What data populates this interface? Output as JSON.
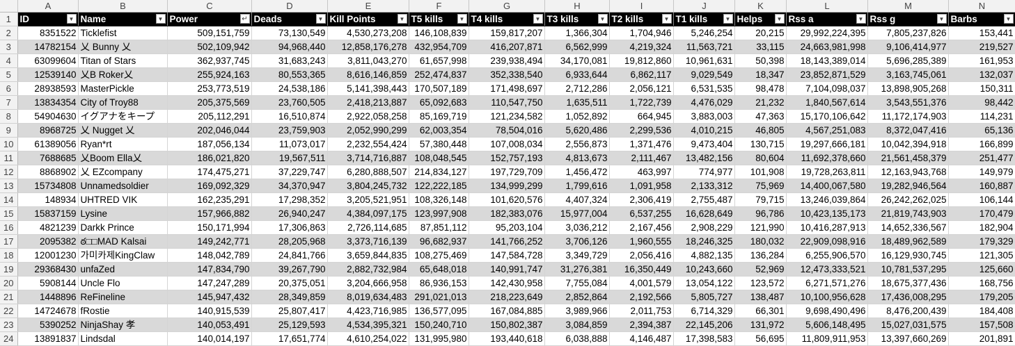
{
  "sheet": {
    "column_letters": [
      "A",
      "B",
      "C",
      "D",
      "E",
      "F",
      "G",
      "H",
      "I",
      "J",
      "K",
      "L",
      "M",
      "N"
    ],
    "headers": [
      {
        "label": "ID",
        "filter_icon": "dropdown-arrow"
      },
      {
        "label": "Name",
        "filter_icon": "dropdown-arrow"
      },
      {
        "label": "Power",
        "filter_icon": "sort-descending-filter"
      },
      {
        "label": "Deads",
        "filter_icon": "dropdown-arrow"
      },
      {
        "label": "Kill Points",
        "filter_icon": "dropdown-arrow"
      },
      {
        "label": "T5 kills",
        "filter_icon": "dropdown-arrow"
      },
      {
        "label": "T4 kills",
        "filter_icon": "dropdown-arrow"
      },
      {
        "label": "T3 kills",
        "filter_icon": "dropdown-arrow"
      },
      {
        "label": "T2 kills",
        "filter_icon": "dropdown-arrow"
      },
      {
        "label": "T1 kills",
        "filter_icon": "dropdown-arrow"
      },
      {
        "label": "Helps",
        "filter_icon": "dropdown-arrow"
      },
      {
        "label": "Rss a",
        "filter_icon": "dropdown-arrow"
      },
      {
        "label": "Rss g",
        "filter_icon": "dropdown-arrow"
      },
      {
        "label": "Barbs",
        "filter_icon": "dropdown-arrow"
      }
    ],
    "header_row_number": "1",
    "rows": [
      {
        "row": "2",
        "cells": [
          "8351522",
          "Ticklefist",
          "509,151,759",
          "73,130,549",
          "4,530,273,208",
          "146,108,839",
          "159,817,207",
          "1,366,304",
          "1,704,946",
          "5,246,254",
          "20,215",
          "29,992,224,395",
          "7,805,237,826",
          "153,441"
        ]
      },
      {
        "row": "3",
        "cells": [
          "14782154",
          "乂 Bunny 乂",
          "502,109,942",
          "94,968,440",
          "12,858,176,278",
          "432,954,709",
          "416,207,871",
          "6,562,999",
          "4,219,324",
          "11,563,721",
          "33,115",
          "24,663,981,998",
          "9,106,414,977",
          "219,527"
        ]
      },
      {
        "row": "4",
        "cells": [
          "63099604",
          "Titan of Stars",
          "362,937,745",
          "31,683,243",
          "3,811,043,270",
          "61,657,998",
          "239,938,494",
          "34,170,081",
          "19,812,860",
          "10,961,631",
          "50,398",
          "18,143,389,014",
          "5,696,285,389",
          "161,953"
        ]
      },
      {
        "row": "5",
        "cells": [
          "12539140",
          "乂B Roker乂",
          "255,924,163",
          "80,553,365",
          "8,616,146,859",
          "252,474,837",
          "352,338,540",
          "6,933,644",
          "6,862,117",
          "9,029,549",
          "18,347",
          "23,852,871,529",
          "3,163,745,061",
          "132,037"
        ]
      },
      {
        "row": "6",
        "cells": [
          "28938593",
          "MasterPickle",
          "253,773,519",
          "24,538,186",
          "5,141,398,443",
          "170,507,189",
          "171,498,697",
          "2,712,286",
          "2,056,121",
          "6,531,535",
          "98,478",
          "7,104,098,037",
          "13,898,905,268",
          "150,311"
        ]
      },
      {
        "row": "7",
        "cells": [
          "13834354",
          "City of Troy88",
          "205,375,569",
          "23,760,505",
          "2,418,213,887",
          "65,092,683",
          "110,547,750",
          "1,635,511",
          "1,722,739",
          "4,476,029",
          "21,232",
          "1,840,567,614",
          "3,543,551,376",
          "98,442"
        ]
      },
      {
        "row": "8",
        "cells": [
          "54904630",
          "イグアナをキープ",
          "205,112,291",
          "16,510,874",
          "2,922,058,258",
          "85,169,719",
          "121,234,582",
          "1,052,892",
          "664,945",
          "3,883,003",
          "47,363",
          "15,170,106,642",
          "11,172,174,903",
          "114,231"
        ]
      },
      {
        "row": "9",
        "cells": [
          "8968725",
          "乂 Nugget 乂",
          "202,046,044",
          "23,759,903",
          "2,052,990,299",
          "62,003,354",
          "78,504,016",
          "5,620,486",
          "2,299,536",
          "4,010,215",
          "46,805",
          "4,567,251,083",
          "8,372,047,416",
          "65,136"
        ]
      },
      {
        "row": "10",
        "cells": [
          "61389056",
          "Ryan*rt",
          "187,056,134",
          "11,073,017",
          "2,232,554,424",
          "57,380,448",
          "107,008,034",
          "2,556,873",
          "1,371,476",
          "9,473,404",
          "130,715",
          "19,297,666,181",
          "10,042,394,918",
          "166,899"
        ]
      },
      {
        "row": "11",
        "cells": [
          "7688685",
          "乂Boom Ella乂",
          "186,021,820",
          "19,567,511",
          "3,714,716,887",
          "108,048,545",
          "152,757,193",
          "4,813,673",
          "2,111,467",
          "13,482,156",
          "80,604",
          "11,692,378,660",
          "21,561,458,379",
          "251,477"
        ]
      },
      {
        "row": "12",
        "cells": [
          "8868902",
          "乂 EZcompany",
          "174,475,271",
          "37,229,747",
          "6,280,888,507",
          "214,834,127",
          "197,729,709",
          "1,456,472",
          "463,997",
          "774,977",
          "101,908",
          "19,728,263,811",
          "12,163,943,768",
          "149,979"
        ]
      },
      {
        "row": "13",
        "cells": [
          "15734808",
          "Unnamedsoldier",
          "169,092,329",
          "34,370,947",
          "3,804,245,732",
          "122,222,185",
          "134,999,299",
          "1,799,616",
          "1,091,958",
          "2,133,312",
          "75,969",
          "14,400,067,580",
          "19,282,946,564",
          "160,887"
        ]
      },
      {
        "row": "14",
        "cells": [
          "148934",
          "UHTRED VIK",
          "162,235,291",
          "17,298,352",
          "3,205,521,951",
          "108,326,148",
          "101,620,576",
          "4,407,324",
          "2,306,419",
          "2,755,487",
          "79,715",
          "13,246,039,864",
          "26,242,262,025",
          "106,144"
        ]
      },
      {
        "row": "15",
        "cells": [
          "15837159",
          "Lysine",
          "157,966,882",
          "26,940,247",
          "4,384,097,175",
          "123,997,908",
          "182,383,076",
          "15,977,004",
          "6,537,255",
          "16,628,649",
          "96,786",
          "10,423,135,173",
          "21,819,743,903",
          "170,479"
        ]
      },
      {
        "row": "16",
        "cells": [
          "4821239",
          "Darkk Prince",
          "150,171,994",
          "17,306,863",
          "2,726,114,685",
          "87,851,112",
          "95,203,104",
          "3,036,212",
          "2,167,456",
          "2,908,229",
          "121,990",
          "10,416,287,913",
          "14,652,336,567",
          "182,904"
        ]
      },
      {
        "row": "17",
        "cells": [
          "2095382",
          "ఠ□□MAD Kalsai",
          "149,242,771",
          "28,205,968",
          "3,373,716,139",
          "96,682,937",
          "141,766,252",
          "3,706,126",
          "1,960,555",
          "18,246,325",
          "180,032",
          "22,909,098,916",
          "18,489,962,589",
          "179,329"
        ]
      },
      {
        "row": "18",
        "cells": [
          "12001230",
          "가미카제KingClaw",
          "148,042,789",
          "24,841,766",
          "3,659,844,835",
          "108,275,469",
          "147,584,728",
          "3,349,729",
          "2,056,416",
          "4,882,135",
          "136,284",
          "6,255,906,570",
          "16,129,930,745",
          "121,305"
        ]
      },
      {
        "row": "19",
        "cells": [
          "29368430",
          "unfaZed",
          "147,834,790",
          "39,267,790",
          "2,882,732,984",
          "65,648,018",
          "140,991,747",
          "31,276,381",
          "16,350,449",
          "10,243,660",
          "52,969",
          "12,473,333,521",
          "10,781,537,295",
          "125,660"
        ]
      },
      {
        "row": "20",
        "cells": [
          "5908144",
          "Uncle Flo",
          "147,247,289",
          "20,375,051",
          "3,204,666,958",
          "86,936,153",
          "142,430,958",
          "7,755,084",
          "4,001,579",
          "13,054,122",
          "123,572",
          "6,271,571,276",
          "18,675,377,436",
          "168,756"
        ]
      },
      {
        "row": "21",
        "cells": [
          "1448896",
          "ReFineline",
          "145,947,432",
          "28,349,859",
          "8,019,634,483",
          "291,021,013",
          "218,223,649",
          "2,852,864",
          "2,192,566",
          "5,805,727",
          "138,487",
          "10,100,956,628",
          "17,436,008,295",
          "179,205"
        ]
      },
      {
        "row": "22",
        "cells": [
          "14724678",
          "fRostie",
          "140,915,539",
          "25,807,417",
          "4,423,716,985",
          "136,577,095",
          "167,084,885",
          "3,989,966",
          "2,011,753",
          "6,714,329",
          "66,301",
          "9,698,490,496",
          "8,476,200,439",
          "184,408"
        ]
      },
      {
        "row": "23",
        "cells": [
          "5390252",
          "NinjaShay 孝",
          "140,053,491",
          "25,129,593",
          "4,534,395,321",
          "150,240,710",
          "150,802,387",
          "3,084,859",
          "2,394,387",
          "22,145,206",
          "131,972",
          "5,606,148,495",
          "15,027,031,575",
          "157,508"
        ]
      },
      {
        "row": "24",
        "cells": [
          "13891837",
          "Lindsdal",
          "140,014,197",
          "17,651,774",
          "4,610,254,022",
          "131,995,980",
          "193,440,618",
          "6,038,888",
          "4,146,487",
          "17,398,583",
          "56,695",
          "11,809,911,953",
          "13,397,660,269",
          "201,891"
        ]
      }
    ]
  }
}
